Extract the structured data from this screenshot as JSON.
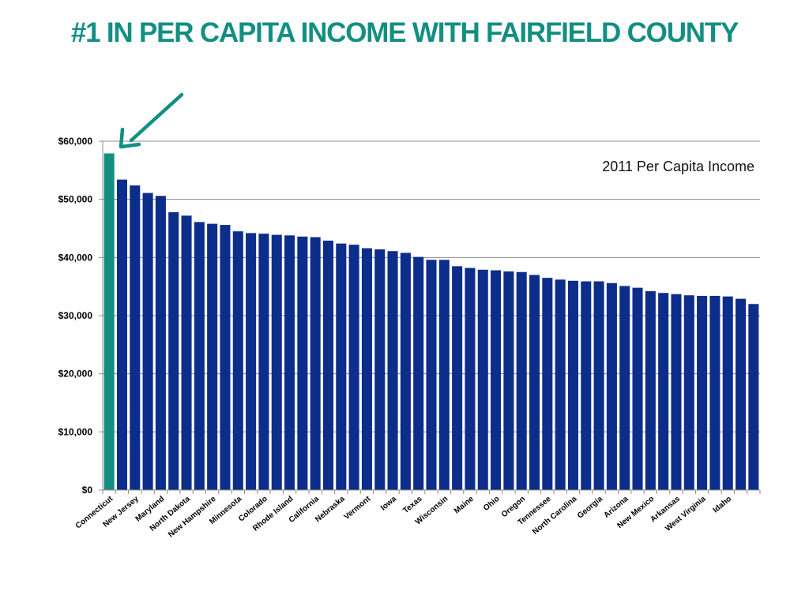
{
  "slide": {
    "title": "#1 IN PER CAPITA INCOME WITH FAIRFIELD COUNTY"
  },
  "colors": {
    "title": "#138f82",
    "highlight_bar": "#138f82",
    "bar": "#0d2d8a",
    "gridline": "#8c8c8c",
    "arrow": "#138f82"
  },
  "chart_data": {
    "type": "bar",
    "title": "2011 Per Capita Income",
    "xlabel": "",
    "ylabel": "",
    "ylim": [
      0,
      60000
    ],
    "yticks": [
      0,
      10000,
      20000,
      30000,
      40000,
      50000,
      60000
    ],
    "ytick_labels": [
      "$0",
      "$10,000",
      "$20,000",
      "$30,000",
      "$40,000",
      "$50,000",
      "$60,000"
    ],
    "grid": true,
    "highlight_index": 0,
    "annotation": "arrow pointing to the Connecticut bar",
    "values": [
      57900,
      53400,
      52400,
      51100,
      50600,
      47800,
      47200,
      46100,
      45800,
      45600,
      44500,
      44200,
      44100,
      43900,
      43800,
      43600,
      43500,
      42900,
      42400,
      42200,
      41600,
      41400,
      41100,
      40800,
      40100,
      39600,
      39600,
      38500,
      38200,
      37900,
      37800,
      37600,
      37500,
      37000,
      36500,
      36200,
      36000,
      35900,
      35900,
      35600,
      35100,
      34800,
      34200,
      33900,
      33700,
      33500,
      33400,
      33400,
      33300,
      32900,
      32000
    ],
    "labeled_categories": [
      "Connecticut",
      "New Jersey",
      "Maryland",
      "North Dakota",
      "New Hampshire",
      "Minnesota",
      "Colorado",
      "Rhode Island",
      "California",
      "Nebraska",
      "Vermont",
      "Iowa",
      "Texas",
      "Wisconsin",
      "Maine",
      "Ohio",
      "Oregon",
      "Tennessee",
      "North Carolina",
      "Georgia",
      "Arizona",
      "New Mexico",
      "Arkansas",
      "West Virginia",
      "Idaho"
    ]
  }
}
